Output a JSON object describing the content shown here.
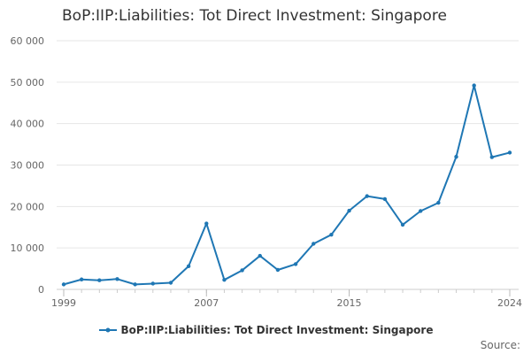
{
  "chart_data": {
    "type": "line",
    "title": "BoP:IIP:Liabilities: Tot Direct Investment: Singapore",
    "xlabel": "",
    "ylabel": "",
    "x": [
      1999,
      2000,
      2001,
      2002,
      2003,
      2004,
      2005,
      2006,
      2007,
      2008,
      2009,
      2010,
      2011,
      2012,
      2013,
      2014,
      2015,
      2016,
      2017,
      2018,
      2019,
      2020,
      2021,
      2022,
      2023,
      2024
    ],
    "x_ticks": [
      1999,
      2007,
      2015,
      2024
    ],
    "x_tick_labels": [
      "1999",
      "2007",
      "2015",
      "2024"
    ],
    "xlim": [
      1999,
      2024
    ],
    "ylim": [
      0,
      60000
    ],
    "y_ticks": [
      0,
      10000,
      20000,
      30000,
      40000,
      50000,
      60000
    ],
    "y_tick_labels": [
      "0",
      "10 000",
      "20 000",
      "30 000",
      "40 000",
      "50 000",
      "60 000"
    ],
    "grid": true,
    "series": [
      {
        "name": "BoP:IIP:Liabilities: Tot Direct Investment: Singapore",
        "color": "#1f77b4",
        "values": [
          1200,
          2400,
          2200,
          2500,
          1200,
          1400,
          1600,
          5600,
          15900,
          2300,
          4600,
          8100,
          4700,
          6100,
          11000,
          13200,
          19000,
          22500,
          21800,
          15600,
          18900,
          20900,
          32000,
          49200,
          31900,
          33000
        ]
      }
    ],
    "legend_position": "bottom"
  },
  "source_label": "Source:"
}
